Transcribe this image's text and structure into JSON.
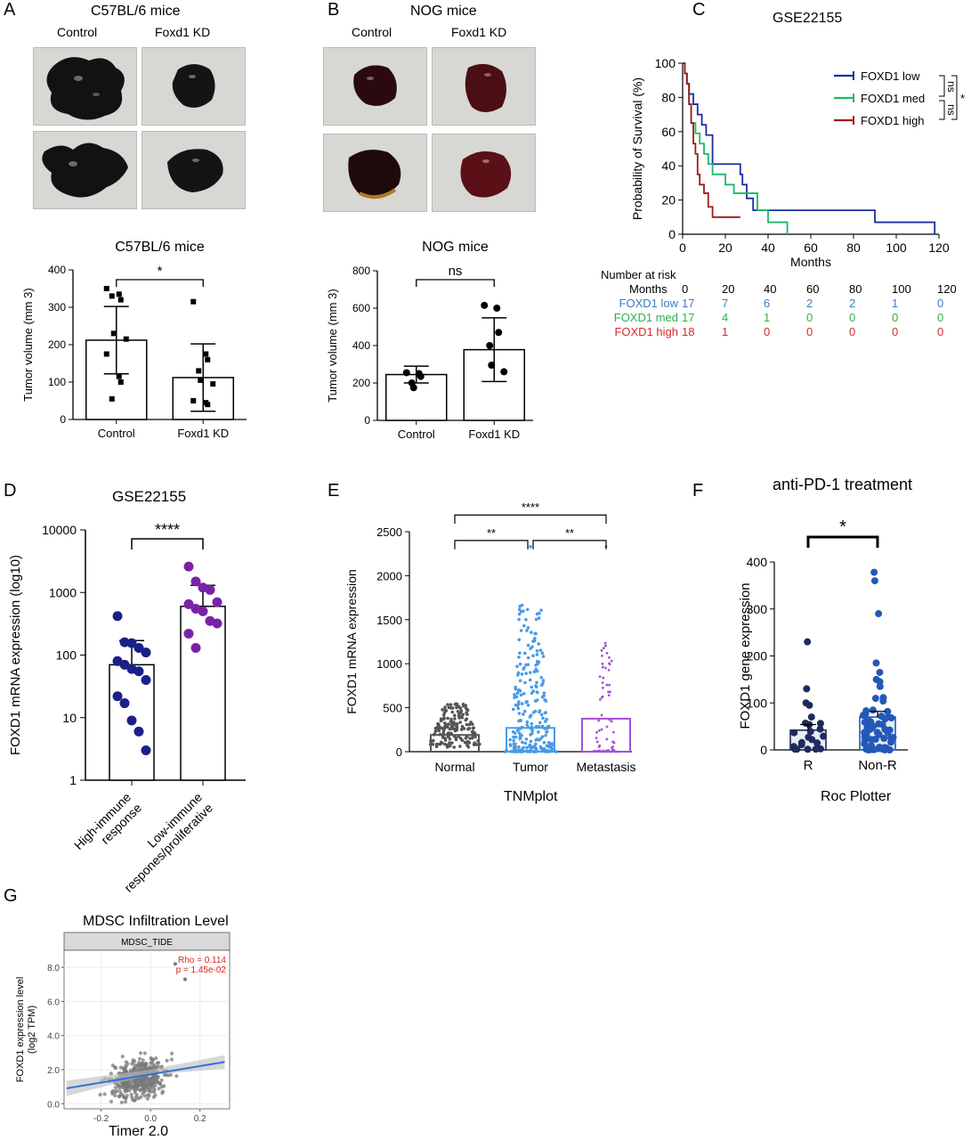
{
  "panels": {
    "A": {
      "letter": "A",
      "title": "C57BL/6 mice",
      "photo_labels": [
        "Control",
        "Foxd1 KD"
      ],
      "chart_title": "C57BL/6 mice",
      "sig": "*"
    },
    "B": {
      "letter": "B",
      "title": "NOG mice",
      "photo_labels": [
        "Control",
        "Foxd1 KD"
      ],
      "chart_title": "NOG mice",
      "sig": "ns"
    },
    "C": {
      "letter": "C",
      "title": "GSE22155",
      "risk_header": "Number at risk",
      "risk_months_label": "Months",
      "risk_times": [
        "0",
        "20",
        "40",
        "60",
        "80",
        "100",
        "120"
      ],
      "risk_rows": [
        {
          "label": "FOXD1 low",
          "color": "#3a7cc7",
          "values": [
            "17",
            "7",
            "6",
            "2",
            "2",
            "1",
            "0"
          ]
        },
        {
          "label": "FOXD1 med",
          "color": "#2bb04a",
          "values": [
            "17",
            "4",
            "1",
            "0",
            "0",
            "0",
            "0"
          ]
        },
        {
          "label": "FOXD1 high",
          "color": "#d42a2a",
          "values": [
            "18",
            "1",
            "0",
            "0",
            "0",
            "0",
            "0"
          ]
        }
      ],
      "bracket_labels": [
        "ns",
        "ns",
        "*"
      ]
    },
    "D": {
      "letter": "D",
      "title": "GSE22155",
      "sig": "****"
    },
    "E": {
      "letter": "E",
      "caption": "TNMplot",
      "sigs": [
        "**",
        "**",
        "****"
      ]
    },
    "F": {
      "letter": "F",
      "title": "anti-PD-1 treatment",
      "caption": "Roc Plotter",
      "sig": "*"
    },
    "G": {
      "letter": "G",
      "title": "MDSC Infiltration Level",
      "strip": "MDSC_TIDE",
      "rho": "Rho = 0.114",
      "p": "p = 1.45e-02",
      "caption": "Timer 2.0"
    }
  },
  "chart_data": [
    {
      "id": "A-bar",
      "type": "bar",
      "title": "C57BL/6 mice",
      "categories": [
        "Control",
        "Foxd1 KD"
      ],
      "values": [
        212,
        112
      ],
      "sd": [
        90,
        90
      ],
      "points": [
        [
          350,
          335,
          320,
          330,
          230,
          215,
          175,
          115,
          100,
          55
        ],
        [
          315,
          175,
          160,
          130,
          105,
          95,
          50,
          45,
          40
        ]
      ],
      "ylabel": "Tumor volume (mm 3)",
      "ylim": [
        0,
        400
      ],
      "yticks": [
        0,
        100,
        200,
        300,
        400
      ],
      "bar_color": "#ffffff",
      "point_color": "#000000",
      "point_shape": "square"
    },
    {
      "id": "B-bar",
      "type": "bar",
      "title": "NOG mice",
      "categories": [
        "Control",
        "Foxd1 KD"
      ],
      "values": [
        245,
        378
      ],
      "sd": [
        45,
        170
      ],
      "points": [
        [
          255,
          250,
          235,
          200,
          175
        ],
        [
          615,
          600,
          470,
          400,
          295,
          260
        ]
      ],
      "ylabel": "Tumor volume (mm 3)",
      "ylim": [
        0,
        800
      ],
      "yticks": [
        0,
        200,
        400,
        600,
        800
      ],
      "bar_color": "#ffffff",
      "point_color": "#000000",
      "point_shape": "circle"
    },
    {
      "id": "C-km",
      "type": "line",
      "title": "GSE22155",
      "xlabel": "Months",
      "ylabel": "Probability of Survival (%)",
      "xlim": [
        0,
        120
      ],
      "ylim": [
        0,
        100
      ],
      "xticks": [
        0,
        20,
        40,
        60,
        80,
        100,
        120
      ],
      "yticks": [
        0,
        20,
        40,
        60,
        80,
        100
      ],
      "series": [
        {
          "name": "FOXD1 low",
          "color": "#1a2ea0",
          "x": [
            0,
            1,
            2,
            3,
            5,
            7,
            9,
            11,
            14,
            27,
            28,
            30,
            33,
            90,
            118
          ],
          "y": [
            100,
            94,
            88,
            82,
            76,
            70,
            64,
            58,
            41,
            35,
            29,
            21,
            14,
            7,
            0
          ]
        },
        {
          "name": "FOXD1 med",
          "color": "#1db866",
          "x": [
            0,
            1,
            2,
            3,
            4,
            6,
            8,
            10,
            12,
            14,
            20,
            24,
            35,
            40,
            49
          ],
          "y": [
            100,
            94,
            88,
            76,
            65,
            59,
            53,
            47,
            41,
            35,
            29,
            24,
            14,
            7,
            0
          ]
        },
        {
          "name": "FOXD1 high",
          "color": "#a01a1a",
          "x": [
            0,
            1,
            2,
            3,
            4,
            5,
            6,
            7,
            8,
            10,
            12,
            14,
            27
          ],
          "y": [
            100,
            94,
            88,
            76,
            65,
            53,
            47,
            35,
            29,
            24,
            16,
            10,
            10
          ]
        }
      ]
    },
    {
      "id": "D-bar",
      "type": "bar",
      "title": "GSE22155",
      "categories": [
        "High-immune response",
        "Low-immune respones/proliferative"
      ],
      "values": [
        70,
        600
      ],
      "sd_high": [
        170,
        1300
      ],
      "sd_low": [
        25,
        250
      ],
      "points": [
        [
          420,
          160,
          155,
          130,
          110,
          80,
          70,
          60,
          55,
          40,
          22,
          17,
          9,
          6,
          3
        ],
        [
          2600,
          1500,
          1200,
          1100,
          700,
          650,
          550,
          500,
          350,
          320,
          220,
          130
        ]
      ],
      "point_colors": [
        "#1b1f8a",
        "#7a22a6"
      ],
      "ylabel": "FOXD1 mRNA expression (log10)",
      "scale": "log",
      "ylim": [
        1,
        10000
      ],
      "yticks": [
        1,
        10,
        100,
        1000,
        10000
      ]
    },
    {
      "id": "E-bar",
      "type": "bar",
      "caption": "TNMplot",
      "categories": [
        "Normal",
        "Tumor",
        "Metastasis"
      ],
      "values": [
        190,
        270,
        375
      ],
      "colors": [
        "#555555",
        "#4a9be6",
        "#a64fd6"
      ],
      "ylabel": "FOXD1 mRNA expression",
      "ylim": [
        0,
        2500
      ],
      "yticks": [
        0,
        500,
        1000,
        1500,
        2000,
        2500
      ]
    },
    {
      "id": "F-bar",
      "type": "bar",
      "title": "anti-PD-1 treatment",
      "caption": "Roc Plotter",
      "categories": [
        "R",
        "Non-R"
      ],
      "values": [
        42,
        70
      ],
      "colors": [
        "#1f2a5c",
        "#2458b8"
      ],
      "outliers": [
        [
          230,
          130,
          100,
          95,
          70
        ],
        [
          378,
          360,
          290,
          185,
          165,
          150,
          145,
          135
        ]
      ],
      "ylabel": "FOXD1 gene expression",
      "ylim": [
        0,
        400
      ],
      "yticks": [
        0,
        100,
        200,
        300,
        400
      ]
    },
    {
      "id": "G-scatter",
      "type": "scatter",
      "title": "MDSC Infiltration Level",
      "ylabel": "FOXD1 expression level (log2 TPM)",
      "xlim": [
        -0.35,
        0.32
      ],
      "ylim": [
        -0.3,
        9.0
      ],
      "xticks": [
        -0.2,
        0.0,
        0.2
      ],
      "yticks": [
        0.0,
        2.0,
        4.0,
        6.0,
        8.0
      ],
      "xtick_labels": [
        "-0.2",
        "0.0",
        "0.2"
      ],
      "ytick_labels": [
        "0.0",
        "2.0",
        "4.0",
        "6.0",
        "8.0"
      ],
      "fit": {
        "x": [
          -0.34,
          0.3
        ],
        "y": [
          0.9,
          2.45
        ]
      },
      "annotation": {
        "rho": 0.114,
        "p": "1.45e-02"
      }
    }
  ]
}
